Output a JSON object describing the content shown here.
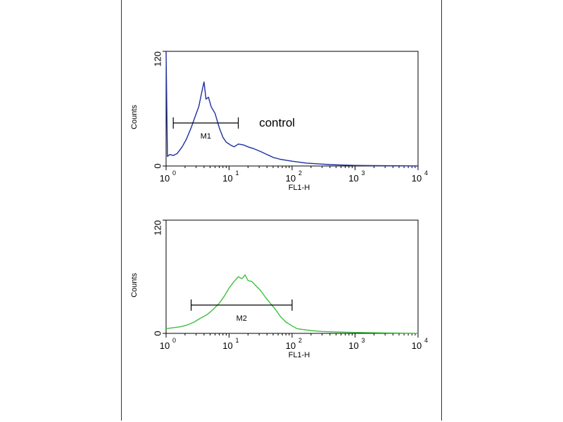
{
  "chart_data": [
    {
      "type": "line",
      "title": "",
      "xlabel": "FL1-H",
      "ylabel": "Counts",
      "x_scale": "log",
      "xlim": [
        1,
        10000
      ],
      "ylim": [
        0,
        120
      ],
      "x_ticks": [
        1,
        10,
        100,
        1000,
        10000
      ],
      "x_tick_base": "10",
      "x_tick_exponents": [
        "0",
        "1",
        "2",
        "3",
        "4"
      ],
      "y_ticks": [
        "0",
        "120"
      ],
      "grid": false,
      "color": "#1f2fa0",
      "annotation": "control",
      "marker": {
        "label": "M1",
        "x_start": 1.3,
        "x_end": 14,
        "y": 45
      },
      "series": [
        {
          "x": [
            1.0,
            1.05,
            1.15,
            1.3,
            1.5,
            1.8,
            2.1,
            2.5,
            2.9,
            3.3,
            3.7,
            4.0,
            4.3,
            4.7,
            5.2,
            6.0,
            7.0,
            8.0,
            9.0,
            10.5,
            12.0,
            14.0,
            17.0,
            20.0,
            25.0,
            32.0,
            40.0,
            50.0,
            65.0,
            80.0,
            100.0,
            130.0,
            170.0,
            220.0,
            300.0,
            400.0,
            600.0,
            1000.0,
            2000.0,
            5000.0,
            10000.0
          ],
          "y": [
            120,
            10,
            12,
            11,
            13,
            20,
            28,
            40,
            52,
            62,
            78,
            88,
            70,
            72,
            62,
            55,
            40,
            30,
            25,
            22,
            20,
            23,
            22,
            20,
            18,
            15,
            12,
            9,
            7,
            6,
            5,
            4,
            3,
            2.5,
            2,
            1.5,
            1,
            0.6,
            0.4,
            0.2,
            0
          ]
        }
      ]
    },
    {
      "type": "line",
      "title": "",
      "xlabel": "FL1-H",
      "ylabel": "Counts",
      "x_scale": "log",
      "xlim": [
        1,
        10000
      ],
      "ylim": [
        0,
        120
      ],
      "x_ticks": [
        1,
        10,
        100,
        1000,
        10000
      ],
      "x_tick_base": "10",
      "x_tick_exponents": [
        "0",
        "1",
        "2",
        "3",
        "4"
      ],
      "y_ticks": [
        "0",
        "120"
      ],
      "grid": false,
      "color": "#3fbf3f",
      "marker": {
        "label": "M2",
        "x_start": 2.5,
        "x_end": 100,
        "y": 30
      },
      "series": [
        {
          "x": [
            1.0,
            1.3,
            1.7,
            2.2,
            2.8,
            3.5,
            4.5,
            5.5,
            7.0,
            8.5,
            10.0,
            12.0,
            14.0,
            16.0,
            18.0,
            20.0,
            23.0,
            27.0,
            32.0,
            38.0,
            45.0,
            55.0,
            65.0,
            80.0,
            100.0,
            120.0,
            150.0,
            200.0,
            300.0,
            500.0,
            1000.0,
            3000.0,
            10000.0
          ],
          "y": [
            5,
            6,
            7,
            9,
            12,
            16,
            20,
            25,
            32,
            40,
            48,
            55,
            60,
            58,
            62,
            56,
            55,
            50,
            45,
            38,
            32,
            25,
            18,
            12,
            8,
            5,
            4,
            3,
            2,
            1.5,
            1,
            0.5,
            0
          ]
        }
      ]
    }
  ]
}
